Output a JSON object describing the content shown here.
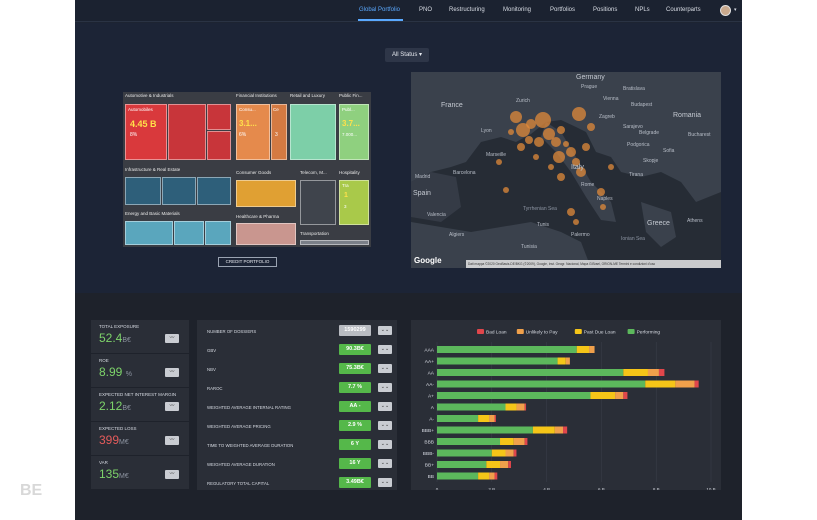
{
  "nav": {
    "items": [
      "Global Portfolio",
      "PNO",
      "Restructuring",
      "Monitoring",
      "Portfolios",
      "Positions",
      "NPLs",
      "Counterparts"
    ],
    "active": "Global Portfolio"
  },
  "status_filter": {
    "value": "All Status"
  },
  "treemap": {
    "groups": {
      "automotive": "Automotive & Industrials",
      "financial": "Financial Institutions",
      "retail": "Retail and Luxury",
      "public": "Public Fin...",
      "infrastructure": "Infrastructure & Real Estate",
      "consumer": "Consumer Goods",
      "telecom": "Telecom, M...",
      "hospitality": "Hospitality",
      "energy": "Energy and Basic Materials",
      "healthcare": "Healthcare & Pharma",
      "transportation": "Transportation"
    },
    "tiles": {
      "automobiles": {
        "name": "Automobiles",
        "value": "4.45 B",
        "pct": "8%"
      },
      "consu": {
        "name": "Consu...",
        "value": "3.1...",
        "pct": "6%"
      },
      "ce": {
        "name": "Ce",
        "pct": "3"
      },
      "publ": {
        "name": "Publ...",
        "value": "3.7...",
        "sub": "7.000..."
      },
      "tra": {
        "name": "Tra",
        "pct": "1",
        "sub": "3"
      }
    },
    "button_label": "CREDIT PORTFOLIO"
  },
  "map": {
    "labels": {
      "germany": "Germany",
      "france": "France",
      "italy": "Italy",
      "romania": "Romania",
      "spain": "Spain",
      "tunisia": "Tunisia",
      "greece": "Greece",
      "prague": "Prague",
      "vienna": "Vienna",
      "budapest": "Budapest",
      "zurich": "Zurich",
      "zagreb": "Zagreb",
      "belgrade": "Belgrade",
      "bucharest": "Bucharest",
      "sofia": "Sofia",
      "barcelona": "Barcelona",
      "rome": "Rome",
      "naples": "Naples",
      "tunis": "Tunis",
      "athens": "Athens",
      "bratislava": "Bratislava",
      "lyon": "Lyon",
      "marseille": "Marseille",
      "sarajevo": "Sarajevo",
      "skopje": "Skopje",
      "tirana": "Tirana",
      "podgorica": "Podgorica",
      "madrid": "Madrid",
      "valencia": "Valencia",
      "algiers": "Algiers",
      "tyrrhenian": "Tyrrhenian Sea",
      "ionian": "Ionian Sea",
      "palermo": "Palermo"
    },
    "google": "Google",
    "footer": "Dati mappa ©2020 GeoBasis-DE/BKG (©2009), Google, Inst. Geogr. Nacional, Mapa GISrael, ORION-ME    Termini e condizioni d'uso"
  },
  "kpis": [
    {
      "label": "TOTAL EXPOSURE",
      "value": "52.4",
      "unit": "B€",
      "color": "green"
    },
    {
      "label": "ROE",
      "value": "8.99",
      "unit": "%",
      "color": "green"
    },
    {
      "label": "EXPECTED NET INTEREST MARGIN",
      "value": "2.12",
      "unit": "B€",
      "color": "green"
    },
    {
      "label": "EXPECTED LOSS",
      "value": "399",
      "unit": "M€",
      "color": "red"
    },
    {
      "label": "VAR",
      "value": "135",
      "unit": "M€",
      "color": "green"
    }
  ],
  "metrics": [
    {
      "label": "NUMBER OF DOSSIERS",
      "value": "1590299",
      "style": "gray"
    },
    {
      "label": "GBV",
      "value": "90.3B€",
      "style": "green"
    },
    {
      "label": "NBV",
      "value": "75.3B€",
      "style": "green"
    },
    {
      "label": "RAROC",
      "value": "7.7 %",
      "style": "green"
    },
    {
      "label": "WEIGHTED AVERAGE INTERNAL RATING",
      "value": "AA -",
      "style": "green"
    },
    {
      "label": "WEIGHTED AVERAGE PRICING",
      "value": "2.9 %",
      "style": "green"
    },
    {
      "label": "TIME TO WEIGHTED AVERAGE DURATION",
      "value": "6 Y",
      "style": "green"
    },
    {
      "label": "WEIGHTED AVERAGE DURATION",
      "value": "16 Y",
      "style": "green"
    },
    {
      "label": "REGULATORY TOTAL CAPITAL",
      "value": "3.49B€",
      "style": "green"
    }
  ],
  "chart_data": {
    "type": "bar",
    "orientation": "horizontal",
    "stacked": true,
    "categories": [
      "AAA",
      "AA+",
      "AA",
      "AA-",
      "A+",
      "A",
      "A-",
      "BBB+",
      "BBB",
      "BBB-",
      "BB+",
      "BB"
    ],
    "series": [
      {
        "name": "Bad Loan",
        "color": "#e0464b",
        "values": [
          0,
          0,
          0.2,
          0.15,
          0.15,
          0.05,
          0.05,
          0.15,
          0.1,
          0.1,
          0.1,
          0.1
        ]
      },
      {
        "name": "Unlikely to Pay",
        "color": "#f0a04b",
        "values": [
          0.2,
          0.15,
          0.4,
          0.7,
          0.3,
          0.3,
          0.2,
          0.3,
          0.4,
          0.3,
          0.3,
          0.2
        ]
      },
      {
        "name": "Past Due Loan",
        "color": "#f5c518",
        "values": [
          0.45,
          0.3,
          0.9,
          1.1,
          0.9,
          0.4,
          0.4,
          0.8,
          0.5,
          0.5,
          0.5,
          0.4
        ]
      },
      {
        "name": "Performing",
        "color": "#5cb85c",
        "values": [
          5.1,
          4.4,
          6.8,
          7.6,
          5.6,
          2.5,
          1.5,
          3.5,
          2.3,
          2.0,
          1.8,
          1.5
        ]
      }
    ],
    "x_ticks": [
      "0",
      "2 B",
      "4 B",
      "6 B",
      "8 B",
      "10 B"
    ],
    "xlim": [
      0,
      10
    ],
    "legend": "top"
  },
  "watermark": "BE"
}
